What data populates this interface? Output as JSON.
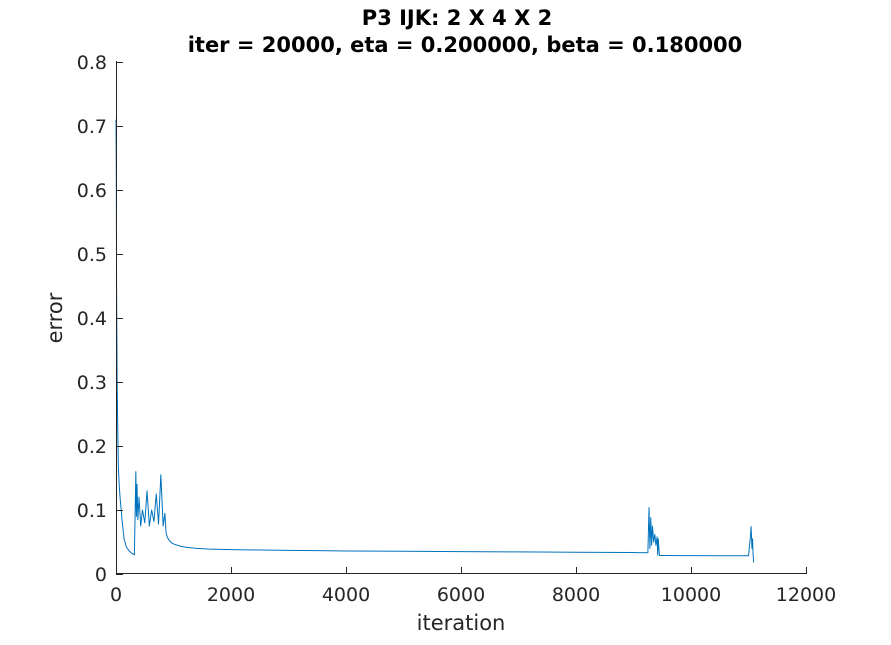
{
  "chart_data": {
    "type": "line",
    "title": "P3 IJK: 2 X 4 X 2",
    "subtitle": "iter = 20000, eta = 0.200000, beta = 0.180000",
    "xlabel": "iteration",
    "ylabel": "error",
    "xlim": [
      0,
      12000
    ],
    "ylim": [
      0,
      0.8
    ],
    "x_ticks": [
      0,
      2000,
      4000,
      6000,
      8000,
      10000,
      12000
    ],
    "x_tick_labels": [
      "0",
      "2000",
      "4000",
      "6000",
      "8000",
      "10000",
      "12000"
    ],
    "y_ticks": [
      0,
      0.1,
      0.2,
      0.3,
      0.4,
      0.5,
      0.6,
      0.7,
      0.8
    ],
    "y_tick_labels": [
      "0",
      "0.1",
      "0.2",
      "0.3",
      "0.4",
      "0.5",
      "0.6",
      "0.7",
      "0.8"
    ],
    "grid": false,
    "series_color": "#0072BD",
    "series": [
      {
        "x": [
          0,
          5,
          10,
          20,
          30,
          40,
          55,
          70,
          90,
          110,
          140,
          180,
          230,
          280,
          320,
          345,
          355,
          365,
          380,
          400,
          430,
          460,
          500,
          540,
          580,
          620,
          660,
          700,
          740,
          780,
          820,
          850,
          870,
          890,
          920,
          960,
          1000,
          1100,
          1200,
          1400,
          1600,
          1800,
          2000,
          2500,
          3000,
          3500,
          4000,
          5000,
          6000,
          7000,
          8000,
          8500,
          9000,
          9250,
          9270,
          9285,
          9300,
          9315,
          9330,
          9350,
          9370,
          9390,
          9410,
          9420,
          9430,
          9450,
          9600,
          9800,
          10000,
          10500,
          11000,
          11030,
          11045,
          11060,
          11070,
          11080,
          11090
        ],
        "y": [
          0.71,
          0.62,
          0.45,
          0.3,
          0.23,
          0.17,
          0.14,
          0.12,
          0.1,
          0.08,
          0.055,
          0.042,
          0.036,
          0.032,
          0.03,
          0.16,
          0.09,
          0.14,
          0.085,
          0.12,
          0.075,
          0.1,
          0.08,
          0.13,
          0.075,
          0.1,
          0.082,
          0.125,
          0.078,
          0.155,
          0.075,
          0.095,
          0.065,
          0.058,
          0.053,
          0.049,
          0.047,
          0.044,
          0.042,
          0.04,
          0.039,
          0.0385,
          0.038,
          0.0375,
          0.037,
          0.0365,
          0.036,
          0.0355,
          0.035,
          0.0345,
          0.034,
          0.0338,
          0.0335,
          0.0333,
          0.104,
          0.04,
          0.088,
          0.045,
          0.075,
          0.05,
          0.062,
          0.045,
          0.058,
          0.03,
          0.055,
          0.029,
          0.0289,
          0.0288,
          0.0287,
          0.0286,
          0.0285,
          0.055,
          0.074,
          0.04,
          0.055,
          0.03,
          0.018
        ]
      }
    ]
  }
}
